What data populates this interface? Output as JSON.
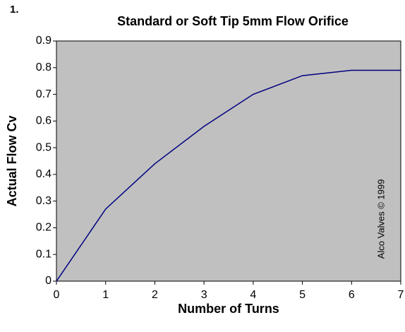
{
  "chart_data": {
    "type": "line",
    "title": "Standard or Soft Tip 5mm Flow Orifice",
    "annotations": [
      "1.",
      "Alco Valves © 1999"
    ],
    "xlabel": "Number of Turns",
    "ylabel": "Actual Flow Cv",
    "x": [
      0,
      1,
      2,
      3,
      4,
      5,
      6,
      7
    ],
    "series": [
      {
        "name": "Actual Flow Cv",
        "color": "#000080",
        "values": [
          0,
          0.27,
          0.44,
          0.58,
          0.7,
          0.77,
          0.79,
          0.79
        ]
      }
    ],
    "xlim": [
      0,
      7
    ],
    "xticks": [
      0,
      1,
      2,
      3,
      4,
      5,
      6,
      7
    ],
    "ylim": [
      0,
      0.9
    ],
    "yticks": [
      0,
      0.1,
      0.2,
      0.3,
      0.4,
      0.5,
      0.6,
      0.7,
      0.8,
      0.9
    ],
    "plot_background": "#c0c0c0",
    "grid": false
  }
}
